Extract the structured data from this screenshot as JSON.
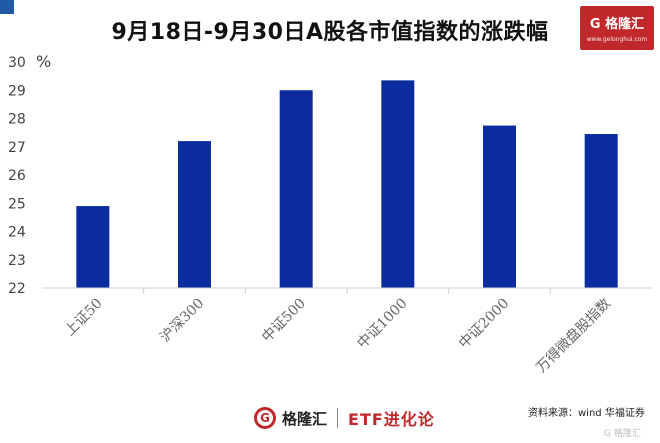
{
  "title": "9月18日-9月30日A股各市值指数的涨跌幅",
  "logo": {
    "main": "G 格隆汇",
    "url": "www.gelonghui.com"
  },
  "footer": {
    "brand": "格隆汇",
    "etf": "ETF进化论"
  },
  "source": "资料来源：wind   华福证券",
  "watermark": "G 格隆汇",
  "colors": {
    "bar": "#0a2c9e",
    "accent": "#c0282b",
    "corner": "#1f5aa6"
  },
  "chart_data": {
    "type": "bar",
    "categories": [
      "上证50",
      "沪深300",
      "中证500",
      "中证1000",
      "中证2000",
      "万得微盘股指数"
    ],
    "values": [
      24.9,
      27.2,
      29.0,
      29.35,
      27.75,
      27.45
    ],
    "ylim": [
      22,
      30
    ],
    "yticks": [
      22,
      23,
      24,
      25,
      26,
      27,
      28,
      29,
      30
    ],
    "unit": "%",
    "grid": false
  }
}
